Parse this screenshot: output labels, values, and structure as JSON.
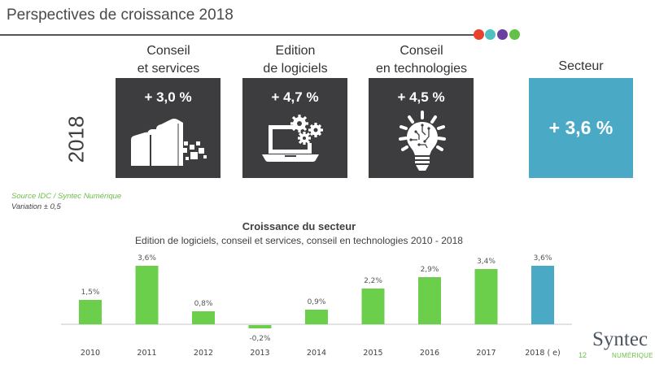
{
  "header": {
    "title": "Perspectives de croissance 2018",
    "dots": [
      {
        "name": "red",
        "color": "#e8412c"
      },
      {
        "name": "teal",
        "color": "#4fc1c0"
      },
      {
        "name": "purple",
        "color": "#6a3fa0"
      },
      {
        "name": "green",
        "color": "#63c049"
      }
    ]
  },
  "year_label": "2018",
  "segments": [
    {
      "label_line1": "Conseil",
      "label_line2": "et services",
      "value": "+ 3,0 %",
      "icon": "buildings-icon"
    },
    {
      "label_line1": "Edition",
      "label_line2": "de logiciels",
      "value": "+ 4,7 %",
      "icon": "laptop-gears-icon"
    },
    {
      "label_line1": "Conseil",
      "label_line2": "en technologies",
      "value": "+ 4,5 %",
      "icon": "lightbulb-circuit-icon"
    }
  ],
  "sector": {
    "label": "Secteur",
    "value": "+ 3,6 %"
  },
  "notes": {
    "source": "Source IDC / Syntec Numérique",
    "variation": "Variation ± 0,5"
  },
  "footer": {
    "page_number": "12",
    "logo_main": "Syntec",
    "logo_sub": "NUMÉRIQUE"
  },
  "colors": {
    "box_dark": "#3d3d3f",
    "sector_blue": "#4aa9c4",
    "bar_green": "#6ccf4c",
    "bar_highlight": "#4aa9c4",
    "accent_green": "#6cc04a"
  },
  "chart_data": {
    "type": "bar",
    "title": "Croissance du secteur",
    "subtitle": "Edition de logiciels, conseil et services, conseil en technologies 2010 - 2018",
    "xlabel": "",
    "ylabel": "",
    "categories": [
      "2010",
      "2011",
      "2012",
      "2013",
      "2014",
      "2015",
      "2016",
      "2017",
      "2018 ( e)"
    ],
    "values": [
      1.5,
      3.6,
      0.8,
      -0.2,
      0.9,
      2.2,
      2.9,
      3.4,
      3.6
    ],
    "data_labels": [
      "1,5%",
      "3,6%",
      "0,8%",
      "-0,2%",
      "0,9%",
      "2,2%",
      "2,9%",
      "3,4%",
      "3,6%"
    ],
    "highlight_index": 8,
    "ylim": [
      -0.5,
      4.0
    ],
    "grid": false,
    "legend": "none"
  }
}
